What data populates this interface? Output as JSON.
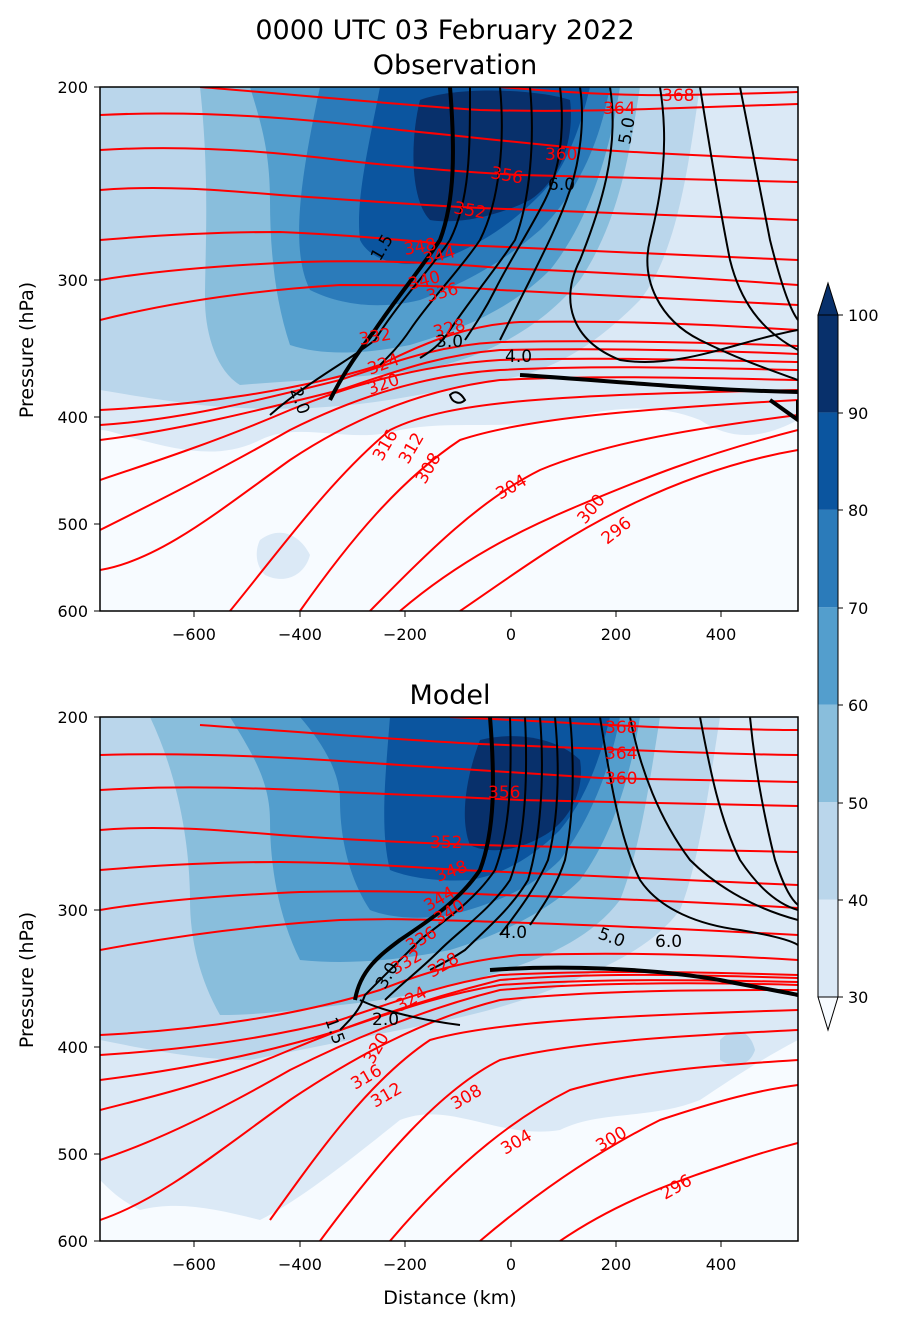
{
  "figure": {
    "suptitle_line1": "0000 UTC 03 February 2022",
    "suptitle_line2": "Observation"
  },
  "colorbar": {
    "ticks": [
      "30",
      "40",
      "50",
      "60",
      "70",
      "80",
      "90",
      "100"
    ],
    "colors": [
      "#f7fbff",
      "#dbe9f6",
      "#bad6eb",
      "#89bedc",
      "#539ecd",
      "#2b7bba",
      "#0b559f",
      "#08306b"
    ],
    "extend": "both"
  },
  "chart_data": [
    {
      "type": "contour",
      "title": "",
      "xlabel": "",
      "ylabel": "Pressure (hPa)",
      "xlim": [
        -780,
        545
      ],
      "ylim": [
        600,
        200
      ],
      "yscale": "log",
      "xticks": [
        "−600",
        "−400",
        "−200",
        "0",
        "200",
        "400"
      ],
      "xtick_values": [
        -600,
        -400,
        -200,
        0,
        200,
        400
      ],
      "yticks": [
        "200",
        "300",
        "400",
        "500",
        "600"
      ],
      "ytick_values": [
        200,
        300,
        400,
        500,
        600
      ],
      "theta_contours": {
        "color": "#ff0000",
        "labels": [
          "296",
          "300",
          "304",
          "308",
          "312",
          "316",
          "320",
          "324",
          "328",
          "332",
          "336",
          "340",
          "344",
          "348",
          "352",
          "356",
          "360",
          "364",
          "368"
        ]
      },
      "pv_contours": {
        "color": "#000000",
        "labels": [
          "1.5",
          "2.0",
          "3.0",
          "4.0",
          "5.0",
          "6.0"
        ]
      }
    },
    {
      "type": "contour",
      "title": "Model",
      "xlabel": "Distance (km)",
      "ylabel": "Pressure (hPa)",
      "xlim": [
        -780,
        545
      ],
      "ylim": [
        600,
        200
      ],
      "yscale": "log",
      "xticks": [
        "−600",
        "−400",
        "−200",
        "0",
        "200",
        "400"
      ],
      "xtick_values": [
        -600,
        -400,
        -200,
        0,
        200,
        400
      ],
      "yticks": [
        "200",
        "300",
        "400",
        "500",
        "600"
      ],
      "ytick_values": [
        200,
        300,
        400,
        500,
        600
      ],
      "theta_contours": {
        "color": "#ff0000",
        "labels": [
          "296",
          "300",
          "304",
          "308",
          "312",
          "316",
          "320",
          "324",
          "328",
          "332",
          "336",
          "340",
          "344",
          "348",
          "352",
          "356",
          "360",
          "364",
          "368"
        ]
      },
      "pv_contours": {
        "color": "#000000",
        "labels": [
          "1.5",
          "2.0",
          "3.0",
          "4.0",
          "5.0",
          "6.0"
        ]
      }
    }
  ]
}
